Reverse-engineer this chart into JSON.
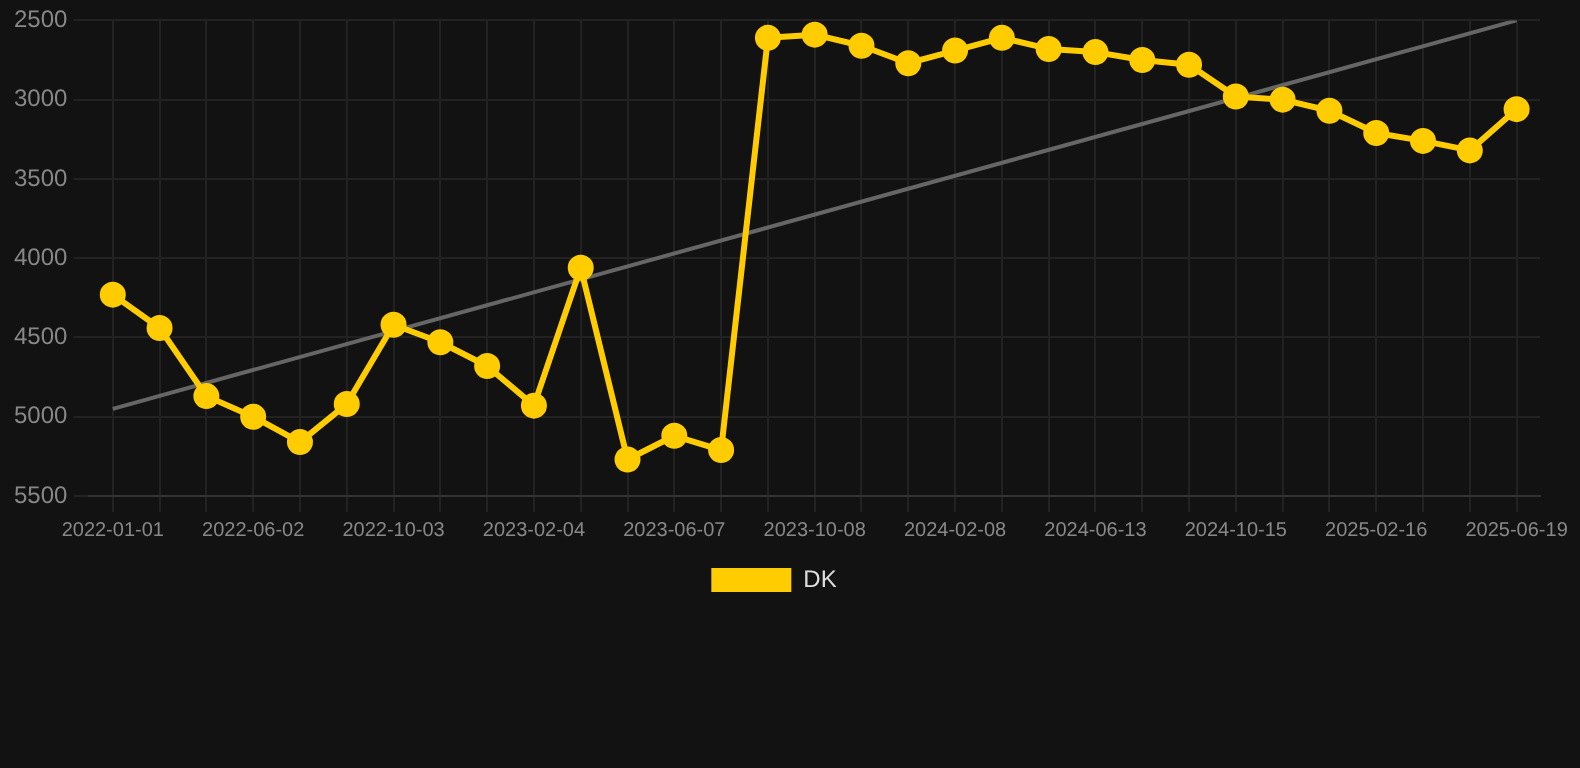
{
  "chart_data": {
    "type": "line",
    "categories": [
      "2022-01-01",
      null,
      null,
      "2022-06-02",
      null,
      null,
      "2022-10-03",
      null,
      null,
      "2023-02-04",
      null,
      null,
      "2023-06-07",
      null,
      null,
      "2023-10-08",
      null,
      null,
      "2024-02-08",
      null,
      null,
      "2024-06-13",
      null,
      null,
      "2024-10-15",
      null,
      null,
      "2025-02-16",
      null,
      null,
      "2025-06-19"
    ],
    "series": [
      {
        "name": "DK",
        "color": "#ffcc00",
        "values": [
          4230,
          4440,
          4870,
          5000,
          5160,
          4920,
          4420,
          4530,
          4680,
          4930,
          4060,
          5270,
          5120,
          5210,
          2610,
          2590,
          2660,
          2770,
          2690,
          2610,
          2680,
          2700,
          2750,
          2780,
          2980,
          3000,
          3070,
          3210,
          3260,
          3320,
          3060
        ]
      },
      {
        "type": "line",
        "color": "#666666",
        "marker": "none",
        "values": [
          4950,
          null,
          null,
          null,
          null,
          null,
          null,
          null,
          null,
          null,
          null,
          null,
          null,
          null,
          null,
          null,
          null,
          null,
          null,
          null,
          null,
          null,
          null,
          null,
          null,
          null,
          null,
          null,
          null,
          null,
          2500
        ]
      }
    ],
    "ylim": [
      5500,
      2500
    ],
    "yticks": [
      2500,
      3000,
      3500,
      4000,
      4500,
      5000,
      5500
    ],
    "grid": true,
    "legend": "bottom",
    "marker": "circle",
    "line_style": "solid"
  }
}
